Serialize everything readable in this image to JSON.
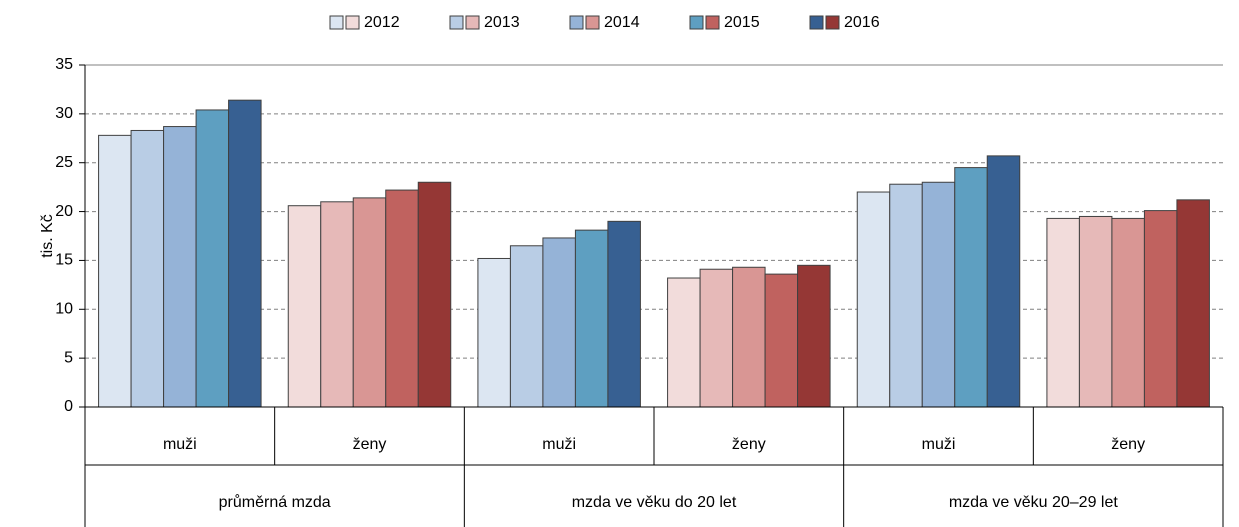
{
  "chart_data": {
    "type": "bar",
    "y_label": "tis. Kč",
    "categories": [
      "muži",
      "ženy",
      "muži",
      "ženy",
      "muži",
      "ženy"
    ],
    "groups": [
      "průměrná mzda",
      "mzda ve věku do 20 let",
      "mzda ve věku 20–29 let"
    ],
    "series": [
      {
        "name": "2012",
        "colors": [
          "#dce6f2",
          "#f2dcdb"
        ],
        "values": [
          27.8,
          20.6,
          15.2,
          13.2,
          22.0,
          19.3
        ]
      },
      {
        "name": "2013",
        "colors": [
          "#b9cde5",
          "#e6b9b8"
        ],
        "values": [
          28.3,
          21.0,
          16.5,
          14.1,
          22.8,
          19.5
        ]
      },
      {
        "name": "2014",
        "colors": [
          "#95b3d7",
          "#d99694"
        ],
        "values": [
          28.7,
          21.4,
          17.3,
          14.3,
          23.0,
          19.3
        ]
      },
      {
        "name": "2015",
        "colors": [
          "#5e9fc1",
          "#c0625f"
        ],
        "values": [
          30.4,
          22.2,
          18.1,
          13.6,
          24.5,
          20.1
        ]
      },
      {
        "name": "2016",
        "colors": [
          "#376092",
          "#953735"
        ],
        "values": [
          31.4,
          23.0,
          19.0,
          14.5,
          25.7,
          21.2
        ]
      }
    ],
    "ylim": [
      0,
      35
    ],
    "yticks": [
      0,
      5,
      10,
      15,
      20,
      25,
      30,
      35
    ],
    "grid": true
  }
}
